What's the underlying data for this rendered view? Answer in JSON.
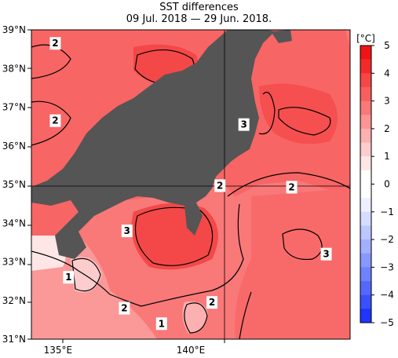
{
  "title": "SST differences",
  "subtitle": "09 Jul. 2018 — 29 Jun. 2018.",
  "lat_labels": [
    "39°N",
    "38°N",
    "37°N",
    "36°N",
    "35°N",
    "34°N",
    "33°N",
    "32°N",
    "31°N"
  ],
  "lon_labels": [
    "135°E",
    "140°E"
  ],
  "colorbar": {
    "unit": "[°C]",
    "ticks": [
      "5",
      "4",
      "3",
      "2",
      "1",
      "0",
      "−1",
      "−2",
      "−3",
      "−4",
      "−5"
    ],
    "colors": [
      "#f01414",
      "#f42a2a",
      "#f64646",
      "#f85e5e",
      "#f97878",
      "#fb9494",
      "#fcb0b0",
      "#fdcccc",
      "#fee6e6",
      "#ffffff",
      "#ffffff",
      "#eef0ff",
      "#d6dcff",
      "#bcc6ff",
      "#a3b0ff",
      "#8898ff",
      "#6f82ff",
      "#5468ff",
      "#3a50ff",
      "#1e34ff"
    ]
  },
  "land_color": "#555555",
  "contour_labels": [
    {
      "text": "2",
      "lon": 134.9,
      "lat": 38.65
    },
    {
      "text": "2",
      "lon": 134.9,
      "lat": 36.65
    },
    {
      "text": "3",
      "lon": 142.0,
      "lat": 36.55
    },
    {
      "text": "2",
      "lon": 141.1,
      "lat": 34.97
    },
    {
      "text": "2",
      "lon": 143.8,
      "lat": 34.93
    },
    {
      "text": "3",
      "lon": 137.6,
      "lat": 33.8
    },
    {
      "text": "3",
      "lon": 145.1,
      "lat": 33.2
    },
    {
      "text": "1",
      "lon": 135.4,
      "lat": 32.6
    },
    {
      "text": "2",
      "lon": 137.5,
      "lat": 31.8
    },
    {
      "text": "2",
      "lon": 140.8,
      "lat": 31.95
    },
    {
      "text": "1",
      "lon": 138.9,
      "lat": 31.4
    }
  ]
}
